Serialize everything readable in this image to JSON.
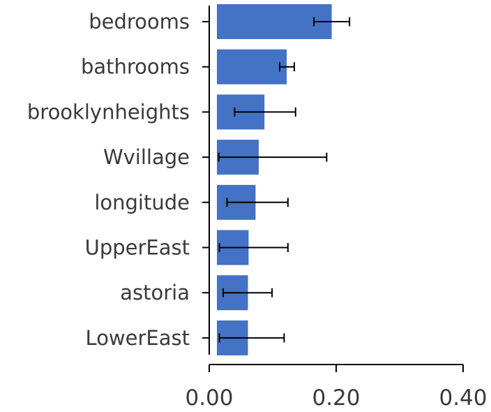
{
  "chart_data": {
    "type": "bar",
    "orientation": "horizontal",
    "categories": [
      "bedrooms",
      "bathrooms",
      "brooklynheights",
      "Wvillage",
      "longitude",
      "UpperEast",
      "astoria",
      "LowerEast"
    ],
    "values": [
      0.193,
      0.122,
      0.087,
      0.078,
      0.073,
      0.062,
      0.061,
      0.061
    ],
    "error_low": [
      0.165,
      0.111,
      0.04,
      0.015,
      0.028,
      0.016,
      0.022,
      0.016
    ],
    "error_high": [
      0.221,
      0.134,
      0.136,
      0.185,
      0.124,
      0.124,
      0.099,
      0.118
    ],
    "xticks": [
      "0.00",
      "0.20",
      "0.40"
    ],
    "xlim": [
      0.0,
      0.4
    ],
    "bar_color": "#4472c4",
    "error_color": "#000000",
    "title": "",
    "xlabel": "",
    "ylabel": "",
    "grid": false,
    "legend": "none"
  }
}
